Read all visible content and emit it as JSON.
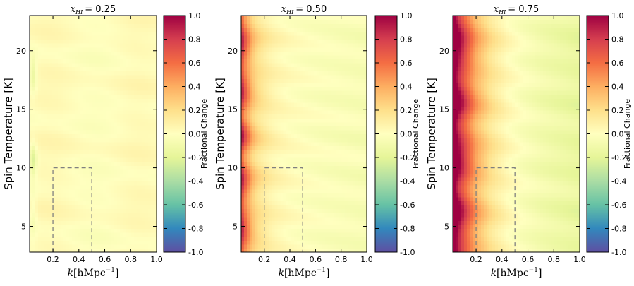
{
  "chart_data": [
    {
      "type": "heatmap",
      "title_var": "x",
      "title_sub": "HI",
      "title_value": "= 0.25",
      "xlabel_var": "k",
      "xlabel_unit": "[hMpc",
      "xlabel_exp": "−1",
      "xlabel_close": "]",
      "ylabel": "Spin Temperature [K]",
      "xlim": [
        0.02,
        1.0
      ],
      "ylim": [
        2.8,
        23
      ],
      "xticks": [
        "0.2",
        "0.4",
        "0.6",
        "0.8",
        "1.0"
      ],
      "xtick_values": [
        0.2,
        0.4,
        0.6,
        0.8,
        1.0
      ],
      "yticks": [
        "5",
        "10",
        "15",
        "20"
      ],
      "ytick_values": [
        5,
        10,
        15,
        20
      ],
      "colorbar_label": "Fractional Change",
      "colorbar_range": [
        -1.0,
        1.0
      ],
      "colorbar_ticks": [
        "-1.0",
        "-0.8",
        "-0.6",
        "-0.4",
        "-0.2",
        "0.0",
        "0.2",
        "0.4",
        "0.6",
        "0.8",
        "1.0"
      ],
      "colorbar_tick_values": [
        -1.0,
        -0.8,
        -0.6,
        -0.4,
        -0.2,
        0.0,
        0.2,
        0.4,
        0.6,
        0.8,
        1.0
      ],
      "box": {
        "k_min": 0.2,
        "k_max": 0.5,
        "T_min": 2.8,
        "T_max": 10
      }
    },
    {
      "type": "heatmap",
      "title_var": "x",
      "title_sub": "HI",
      "title_value": "= 0.50",
      "xlabel_var": "k",
      "xlabel_unit": "[hMpc",
      "xlabel_exp": "−1",
      "xlabel_close": "]",
      "ylabel": "Spin Temperature [K]",
      "xlim": [
        0.02,
        1.0
      ],
      "ylim": [
        2.8,
        23
      ],
      "xticks": [
        "0.2",
        "0.4",
        "0.6",
        "0.8",
        "1.0"
      ],
      "xtick_values": [
        0.2,
        0.4,
        0.6,
        0.8,
        1.0
      ],
      "yticks": [
        "5",
        "10",
        "15",
        "20"
      ],
      "ytick_values": [
        5,
        10,
        15,
        20
      ],
      "colorbar_label": "Fractional Change",
      "colorbar_range": [
        -1.0,
        1.0
      ],
      "colorbar_ticks": [
        "-1.0",
        "-0.8",
        "-0.6",
        "-0.4",
        "-0.2",
        "0.0",
        "0.2",
        "0.4",
        "0.6",
        "0.8",
        "1.0"
      ],
      "colorbar_tick_values": [
        -1.0,
        -0.8,
        -0.6,
        -0.4,
        -0.2,
        0.0,
        0.2,
        0.4,
        0.6,
        0.8,
        1.0
      ],
      "box": {
        "k_min": 0.2,
        "k_max": 0.5,
        "T_min": 2.8,
        "T_max": 10
      }
    },
    {
      "type": "heatmap",
      "title_var": "x",
      "title_sub": "HI",
      "title_value": "= 0.75",
      "xlabel_var": "k",
      "xlabel_unit": "[hMpc",
      "xlabel_exp": "−1",
      "xlabel_close": "]",
      "ylabel": "Spin Temperature [K]",
      "xlim": [
        0.02,
        1.0
      ],
      "ylim": [
        2.8,
        23
      ],
      "xticks": [
        "0.2",
        "0.4",
        "0.6",
        "0.8",
        "1.0"
      ],
      "xtick_values": [
        0.2,
        0.4,
        0.6,
        0.8,
        1.0
      ],
      "yticks": [
        "5",
        "10",
        "15",
        "20"
      ],
      "ytick_values": [
        5,
        10,
        15,
        20
      ],
      "colorbar_label": "Fractional Change",
      "colorbar_range": [
        -1.0,
        1.0
      ],
      "colorbar_ticks": [
        "-1.0",
        "-0.8",
        "-0.6",
        "-0.4",
        "-0.2",
        "0.0",
        "0.2",
        "0.4",
        "0.6",
        "0.8",
        "1.0"
      ],
      "colorbar_tick_values": [
        -1.0,
        -0.8,
        -0.6,
        -0.4,
        -0.2,
        0.0,
        0.2,
        0.4,
        0.6,
        0.8,
        1.0
      ],
      "box": {
        "k_min": 0.2,
        "k_max": 0.5,
        "T_min": 2.8,
        "T_max": 10
      }
    }
  ],
  "colors": {
    "cmap_stops": [
      "#5e4fa2",
      "#3288bd",
      "#66c2a5",
      "#abdda4",
      "#e6f598",
      "#ffffbf",
      "#fee08b",
      "#fdae61",
      "#f46d43",
      "#d53e4f",
      "#9e0142"
    ],
    "box_line": "#808080"
  }
}
